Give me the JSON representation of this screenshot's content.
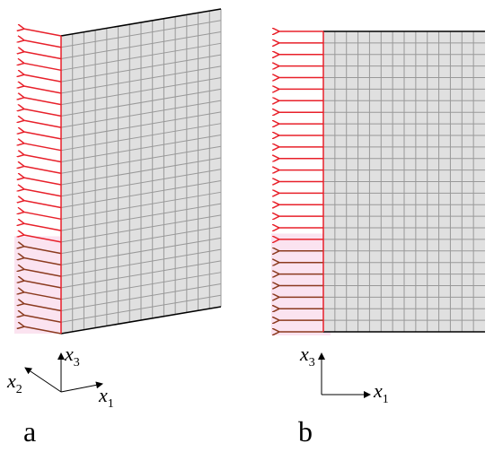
{
  "panels": [
    {
      "label": "a",
      "axes": [
        {
          "symbol": "x",
          "subscript": "3"
        },
        {
          "symbol": "x",
          "subscript": "2"
        },
        {
          "symbol": "x",
          "subscript": "1"
        }
      ]
    },
    {
      "label": "b",
      "axes": [
        {
          "symbol": "x",
          "subscript": "3"
        },
        {
          "symbol": "x",
          "subscript": "1"
        }
      ]
    }
  ]
}
